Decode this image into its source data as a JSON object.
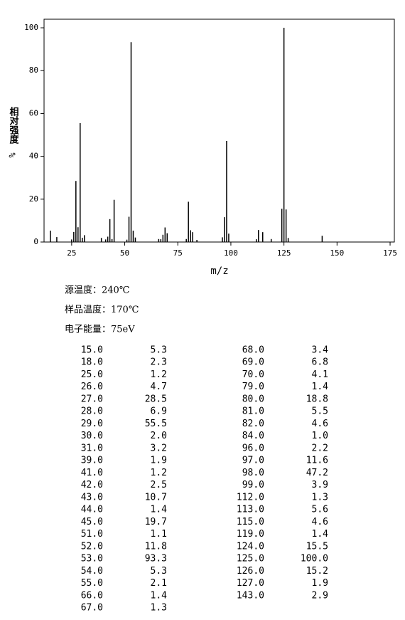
{
  "chart_data": {
    "type": "bar",
    "color": "#000000",
    "xlabel": "m/z",
    "ylabel": "相对强度",
    "yunit": "%",
    "x": [
      15,
      18,
      25,
      26,
      27,
      28,
      29,
      30,
      31,
      39,
      41,
      42,
      43,
      44,
      45,
      51,
      52,
      53,
      54,
      55,
      66,
      67,
      68,
      69,
      70,
      79,
      80,
      81,
      82,
      84,
      96,
      97,
      98,
      99,
      112,
      113,
      115,
      119,
      124,
      125,
      126,
      127,
      143
    ],
    "values": [
      5.3,
      2.3,
      1.2,
      4.7,
      28.5,
      6.9,
      55.5,
      2.0,
      3.2,
      1.9,
      1.2,
      2.5,
      10.7,
      1.4,
      19.7,
      1.1,
      11.8,
      93.3,
      5.3,
      2.1,
      1.4,
      1.3,
      3.4,
      6.8,
      4.1,
      1.4,
      18.8,
      5.5,
      4.6,
      1.0,
      2.2,
      11.6,
      47.2,
      3.9,
      1.3,
      5.6,
      4.6,
      1.4,
      15.5,
      100.0,
      15.2,
      1.9,
      2.9
    ],
    "xlim": [
      12,
      177
    ],
    "ylim": [
      0,
      104
    ],
    "xticks": [
      25,
      50,
      75,
      100,
      125,
      150,
      175
    ],
    "yticks": [
      0,
      20,
      40,
      60,
      80,
      100
    ]
  },
  "conditions": [
    "源温度：240℃",
    "样品温度：170℃",
    "电子能量：75eV"
  ],
  "table": {
    "left": [
      [
        "15.0",
        "5.3"
      ],
      [
        "18.0",
        "2.3"
      ],
      [
        "25.0",
        "1.2"
      ],
      [
        "26.0",
        "4.7"
      ],
      [
        "27.0",
        "28.5"
      ],
      [
        "28.0",
        "6.9"
      ],
      [
        "29.0",
        "55.5"
      ],
      [
        "30.0",
        "2.0"
      ],
      [
        "31.0",
        "3.2"
      ],
      [
        "39.0",
        "1.9"
      ],
      [
        "41.0",
        "1.2"
      ],
      [
        "42.0",
        "2.5"
      ],
      [
        "43.0",
        "10.7"
      ],
      [
        "44.0",
        "1.4"
      ],
      [
        "45.0",
        "19.7"
      ],
      [
        "51.0",
        "1.1"
      ],
      [
        "52.0",
        "11.8"
      ],
      [
        "53.0",
        "93.3"
      ],
      [
        "54.0",
        "5.3"
      ],
      [
        "55.0",
        "2.1"
      ],
      [
        "66.0",
        "1.4"
      ],
      [
        "67.0",
        "1.3"
      ]
    ],
    "right": [
      [
        "68.0",
        "3.4"
      ],
      [
        "69.0",
        "6.8"
      ],
      [
        "70.0",
        "4.1"
      ],
      [
        "79.0",
        "1.4"
      ],
      [
        "80.0",
        "18.8"
      ],
      [
        "81.0",
        "5.5"
      ],
      [
        "82.0",
        "4.6"
      ],
      [
        "84.0",
        "1.0"
      ],
      [
        "96.0",
        "2.2"
      ],
      [
        "97.0",
        "11.6"
      ],
      [
        "98.0",
        "47.2"
      ],
      [
        "99.0",
        "3.9"
      ],
      [
        "112.0",
        "1.3"
      ],
      [
        "113.0",
        "5.6"
      ],
      [
        "115.0",
        "4.6"
      ],
      [
        "119.0",
        "1.4"
      ],
      [
        "124.0",
        "15.5"
      ],
      [
        "125.0",
        "100.0"
      ],
      [
        "126.0",
        "15.2"
      ],
      [
        "127.0",
        "1.9"
      ],
      [
        "143.0",
        "2.9"
      ]
    ]
  }
}
